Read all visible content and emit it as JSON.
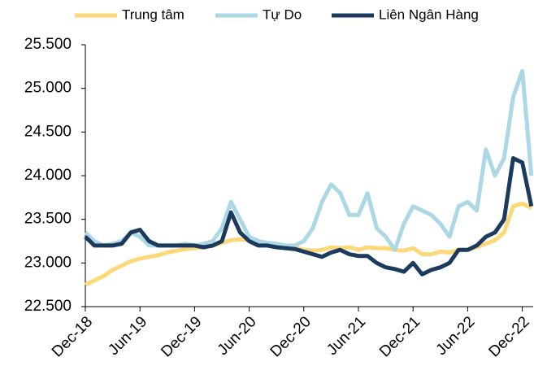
{
  "chart_data": {
    "type": "line",
    "categories": [
      "Dec-18",
      null,
      null,
      null,
      null,
      null,
      "Jun-19",
      null,
      null,
      null,
      null,
      null,
      "Dec-19",
      null,
      null,
      null,
      null,
      null,
      "Jun-20",
      null,
      null,
      null,
      null,
      null,
      "Dec-20",
      null,
      null,
      null,
      null,
      null,
      "Jun-21",
      null,
      null,
      null,
      null,
      null,
      "Dec-21",
      null,
      null,
      null,
      null,
      null,
      "Jun-22",
      null,
      null,
      null,
      null,
      null,
      "Dec-22",
      null
    ],
    "series": [
      {
        "name": "Trung tâm",
        "color": "#fdd878",
        "values": [
          22750,
          22800,
          22850,
          22920,
          22970,
          23020,
          23050,
          23070,
          23090,
          23120,
          23140,
          23160,
          23170,
          23180,
          23200,
          23230,
          23260,
          23270,
          23260,
          23230,
          23220,
          23210,
          23190,
          23180,
          23150,
          23140,
          23150,
          23180,
          23170,
          23180,
          23150,
          23180,
          23170,
          23170,
          23150,
          23140,
          23170,
          23100,
          23100,
          23130,
          23120,
          23150,
          23150,
          23180,
          23220,
          23260,
          23350,
          23650,
          23680,
          23630
        ]
      },
      {
        "name": "Tự Do",
        "color": "#acd8e5",
        "values": [
          23350,
          23250,
          23200,
          23220,
          23250,
          23350,
          23300,
          23200,
          23200,
          23200,
          23200,
          23220,
          23200,
          23220,
          23250,
          23400,
          23700,
          23500,
          23300,
          23250,
          23230,
          23220,
          23200,
          23200,
          23250,
          23400,
          23700,
          23900,
          23800,
          23550,
          23550,
          23800,
          23400,
          23300,
          23150,
          23450,
          23650,
          23600,
          23550,
          23450,
          23300,
          23650,
          23700,
          23600,
          24300,
          24000,
          24200,
          24900,
          25200,
          24000
        ]
      },
      {
        "name": "Liên Ngân Hàng",
        "color": "#1b3a5e",
        "values": [
          23300,
          23200,
          23200,
          23200,
          23220,
          23350,
          23380,
          23250,
          23200,
          23200,
          23200,
          23200,
          23200,
          23180,
          23200,
          23250,
          23580,
          23350,
          23250,
          23200,
          23200,
          23180,
          23170,
          23160,
          23130,
          23100,
          23070,
          23120,
          23150,
          23100,
          23080,
          23080,
          23000,
          22950,
          22930,
          22900,
          23000,
          22870,
          22920,
          22950,
          23000,
          23150,
          23150,
          23200,
          23300,
          23350,
          23500,
          24200,
          24150,
          23650
        ]
      }
    ],
    "ylim": [
      22500,
      25500
    ],
    "yticks": [
      {
        "value": 22500,
        "label": "22.500"
      },
      {
        "value": 23000,
        "label": "23.000"
      },
      {
        "value": 23500,
        "label": "23.500"
      },
      {
        "value": 24000,
        "label": "24.000"
      },
      {
        "value": 24500,
        "label": "24.500"
      },
      {
        "value": 25000,
        "label": "25.000"
      },
      {
        "value": 25500,
        "label": "25.500"
      }
    ],
    "legend": "top"
  }
}
